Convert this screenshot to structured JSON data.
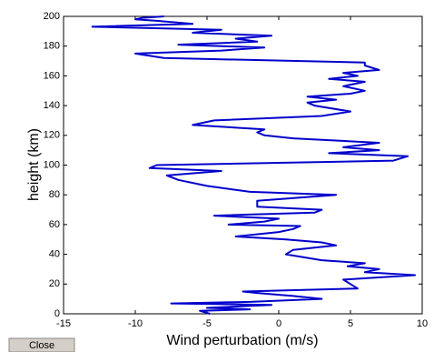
{
  "chart_data": {
    "type": "line",
    "xlabel": "Wind perturbation (m/s)",
    "ylabel": "height (km)",
    "xlim": [
      -15,
      10
    ],
    "xticks": [
      -15,
      -10,
      -5,
      0,
      5,
      10
    ],
    "ylim": [
      0,
      200
    ],
    "yticks": [
      0,
      20,
      40,
      60,
      80,
      100,
      120,
      140,
      160,
      180,
      200
    ],
    "heights": [
      0,
      2,
      3,
      4,
      6,
      7,
      8,
      10,
      12,
      14,
      15,
      17,
      20,
      23,
      26,
      28,
      30,
      32,
      34,
      36,
      40,
      43,
      46,
      48,
      50,
      52,
      55,
      57,
      59,
      60,
      62,
      64,
      66,
      68,
      70,
      72,
      76,
      80,
      82,
      86,
      90,
      93,
      96,
      98,
      100,
      103,
      106,
      108,
      110,
      112,
      115,
      118,
      120,
      122,
      124,
      127,
      130,
      133,
      136,
      140,
      142,
      144,
      146,
      148,
      150,
      153,
      156,
      158,
      160,
      162,
      164,
      167,
      169,
      172,
      175,
      177,
      179,
      181,
      183,
      185,
      187,
      189,
      191,
      193,
      195,
      197,
      198,
      199,
      200
    ],
    "series": [
      {
        "color": "#0000cc",
        "values": [
          -4.8,
          -5.5,
          -2,
          -5,
          -0.5,
          -7.5,
          -2,
          3,
          1,
          -1.5,
          -2.5,
          5.5,
          5,
          4.5,
          9.5,
          6,
          7,
          4.8,
          6,
          3,
          0.5,
          1,
          4,
          3,
          0.5,
          -3,
          0,
          1,
          1.5,
          -3.5,
          -1,
          0,
          -4.5,
          2.5,
          3,
          -1.5,
          -1.5,
          4,
          -2,
          -5,
          -7,
          -7.8,
          -4,
          -9,
          -8.5,
          8,
          9,
          3.5,
          7,
          4.5,
          7,
          1,
          -1,
          -1.5,
          -1,
          -6,
          -4.5,
          3,
          5,
          2.5,
          2,
          4,
          2,
          5,
          6,
          4.5,
          6,
          3.5,
          5.5,
          4.5,
          7,
          6,
          6,
          -8,
          -10,
          -4,
          -1,
          -7,
          -1.5,
          -3,
          -0.5,
          -6,
          -4,
          -13,
          -6,
          -8.5,
          -10,
          -9.5,
          -8
        ]
      }
    ]
  },
  "ui": {
    "close_button": "Close"
  }
}
